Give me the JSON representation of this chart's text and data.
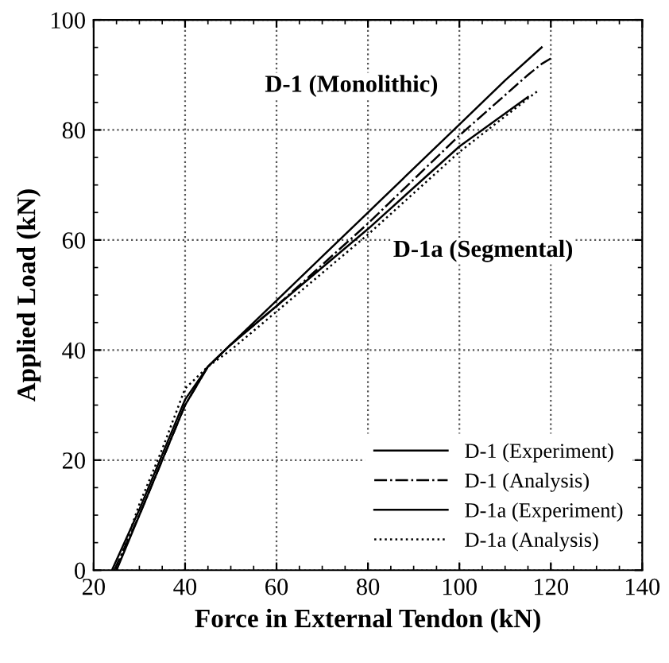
{
  "chart_data": {
    "type": "line",
    "xlabel": "Force in External Tendon (kN)",
    "ylabel": "Applied Load (kN)",
    "xlim": [
      20,
      140
    ],
    "xticks": [
      20,
      40,
      60,
      80,
      100,
      120,
      140
    ],
    "ylim": [
      0,
      100
    ],
    "yticks": [
      0,
      20,
      40,
      60,
      80,
      100
    ],
    "grid": true,
    "legend": "bottom right",
    "marker": "none",
    "annotations": [
      "D-1 (Monolithic)",
      "D-1a (Segmental)"
    ],
    "series": [
      {
        "name": "D-1 (Experiment)",
        "color": "#000000",
        "line_style": "solid",
        "x": [
          25,
          30,
          35,
          40,
          45,
          50,
          60,
          70,
          80,
          90,
          100,
          110,
          118
        ],
        "values": [
          0,
          10,
          20,
          30,
          37,
          41,
          49,
          57,
          65,
          73,
          81,
          89,
          95
        ]
      },
      {
        "name": "D-1 (Analysis)",
        "color": "#000000",
        "line_style": "dashdot",
        "x": [
          24.5,
          30,
          35,
          40,
          45,
          50,
          60,
          80,
          100,
          115,
          118,
          120
        ],
        "values": [
          0,
          10,
          20,
          30,
          37,
          41,
          48,
          63,
          79,
          90,
          92,
          93
        ]
      },
      {
        "name": "D-1a (Experiment)",
        "color": "#000000",
        "line_style": "solid",
        "x": [
          24,
          30,
          35,
          40,
          45,
          50,
          60,
          80,
          100,
          115
        ],
        "values": [
          0,
          11,
          21,
          31,
          37,
          41,
          48,
          62,
          77,
          86
        ]
      },
      {
        "name": "D-1a (Analysis)",
        "color": "#000000",
        "line_style": "dotted",
        "x": [
          25,
          30,
          35,
          40,
          45,
          50,
          60,
          80,
          100,
          117
        ],
        "values": [
          0,
          12,
          22,
          33,
          37,
          40,
          47,
          61,
          76,
          87
        ]
      }
    ]
  }
}
